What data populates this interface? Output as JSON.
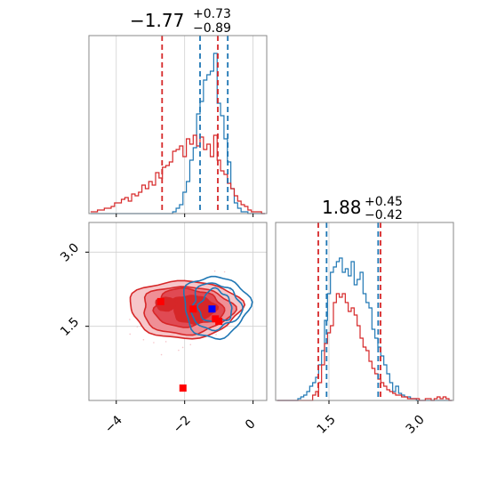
{
  "chart_data": [
    {
      "type": "histogram",
      "panel": "top-left marginal",
      "title": {
        "median": "−1.77",
        "plus": "+0.73",
        "minus": "−0.89"
      },
      "xlim": [
        -4.8,
        0.4
      ],
      "ylim": [
        0,
        1.0
      ],
      "grid": true,
      "bins_x": [
        -4.7,
        -4.6,
        -4.5,
        -4.4,
        -4.3,
        -4.2,
        -4.1,
        -4.0,
        -3.9,
        -3.8,
        -3.7,
        -3.6,
        -3.5,
        -3.4,
        -3.3,
        -3.2,
        -3.1,
        -3.0,
        -2.9,
        -2.8,
        -2.7,
        -2.6,
        -2.5,
        -2.4,
        -2.3,
        -2.2,
        -2.1,
        -2.0,
        -1.9,
        -1.8,
        -1.7,
        -1.6,
        -1.5,
        -1.4,
        -1.3,
        -1.2,
        -1.1,
        -1.0,
        -0.9,
        -0.8,
        -0.7,
        -0.6,
        -0.5,
        -0.4,
        -0.3,
        -0.2,
        -0.1,
        0.0,
        0.1,
        0.2,
        0.3
      ],
      "series": [
        {
          "color": "#1f77b4",
          "quantile_lines": [
            -1.55,
            -0.74
          ],
          "values": [
            0,
            0,
            0,
            0,
            0,
            0,
            0,
            0,
            0,
            0,
            0,
            0,
            0,
            0,
            0,
            0,
            0,
            0,
            0,
            0,
            0,
            0,
            0,
            0,
            0.01,
            0.03,
            0.05,
            0.12,
            0.18,
            0.3,
            0.37,
            0.56,
            0.63,
            0.75,
            0.78,
            0.8,
            0.9,
            0.62,
            0.55,
            0.42,
            0.29,
            0.14,
            0.06,
            0.03,
            0.01,
            0.01,
            0,
            0,
            0,
            0,
            0
          ]
        },
        {
          "color": "#d62728",
          "quantile_lines": [
            -2.66,
            -1.03
          ],
          "values": [
            0.01,
            0.01,
            0.02,
            0.02,
            0.03,
            0.03,
            0.04,
            0.06,
            0.06,
            0.08,
            0.09,
            0.07,
            0.11,
            0.1,
            0.12,
            0.16,
            0.14,
            0.18,
            0.16,
            0.23,
            0.2,
            0.26,
            0.27,
            0.29,
            0.35,
            0.36,
            0.38,
            0.32,
            0.42,
            0.39,
            0.44,
            0.38,
            0.43,
            0.36,
            0.39,
            0.32,
            0.44,
            0.3,
            0.24,
            0.22,
            0.17,
            0.14,
            0.1,
            0.07,
            0.05,
            0.04,
            0.02,
            0.01,
            0.01,
            0.01,
            0
          ]
        }
      ],
      "xticks": [
        -4,
        -2,
        0
      ]
    },
    {
      "type": "contour",
      "panel": "bottom-left 2D",
      "xlim": [
        -4.8,
        0.4
      ],
      "ylim": [
        0.0,
        3.6
      ],
      "grid": true,
      "xticks": [
        -4,
        -2,
        0
      ],
      "xtick_labels": [
        "−4",
        "−2",
        "0"
      ],
      "yticks": [
        1.5,
        3.0
      ],
      "ytick_labels": [
        "1.5",
        "3.0"
      ],
      "red_contours": {
        "color": "#d62728",
        "center": [
          -2.0,
          1.85
        ]
      },
      "blue_contours": {
        "color": "#1f77b4",
        "center": [
          -1.1,
          1.9
        ]
      },
      "red_markers": [
        [
          -2.7,
          2.0
        ],
        [
          -1.75,
          1.85
        ],
        [
          -1.1,
          1.65
        ],
        [
          -1.0,
          1.6
        ],
        [
          -2.05,
          0.25
        ]
      ],
      "blue_markers": [
        [
          -1.2,
          1.85
        ]
      ]
    },
    {
      "type": "histogram",
      "panel": "bottom-right marginal",
      "title": {
        "median": "1.88",
        "plus": "+0.45",
        "minus": "−0.42"
      },
      "xlim": [
        0.6,
        3.6
      ],
      "ylim": [
        0,
        1.0
      ],
      "grid": true,
      "xticks": [
        1.5,
        3.0
      ],
      "xtick_labels": [
        "1.5",
        "3.0"
      ],
      "bins_x": [
        0.65,
        0.7,
        0.75,
        0.8,
        0.85,
        0.9,
        0.95,
        1.0,
        1.05,
        1.1,
        1.15,
        1.2,
        1.25,
        1.3,
        1.35,
        1.4,
        1.45,
        1.5,
        1.55,
        1.6,
        1.65,
        1.7,
        1.75,
        1.8,
        1.85,
        1.9,
        1.95,
        2.0,
        2.05,
        2.1,
        2.15,
        2.2,
        2.25,
        2.3,
        2.35,
        2.4,
        2.45,
        2.5,
        2.55,
        2.6,
        2.65,
        2.7,
        2.75,
        2.8,
        2.85,
        2.9,
        2.95,
        3.0,
        3.05,
        3.1,
        3.15,
        3.2,
        3.25,
        3.3,
        3.35,
        3.4,
        3.45,
        3.5,
        3.55
      ],
      "series": [
        {
          "color": "#1f77b4",
          "quantile_lines": [
            1.46,
            2.33
          ],
          "values": [
            0,
            0,
            0,
            0,
            0,
            0,
            0,
            0.01,
            0.02,
            0.03,
            0.05,
            0.08,
            0.1,
            0.13,
            0.2,
            0.28,
            0.45,
            0.6,
            0.72,
            0.75,
            0.78,
            0.8,
            0.72,
            0.74,
            0.7,
            0.78,
            0.65,
            0.68,
            0.72,
            0.6,
            0.55,
            0.52,
            0.4,
            0.35,
            0.3,
            0.25,
            0.2,
            0.15,
            0.1,
            0.05,
            0.08,
            0.04,
            0.03,
            0.02,
            0.02,
            0.01,
            0.01,
            0,
            0,
            0,
            0,
            0,
            0,
            0,
            0,
            0,
            0,
            0,
            0
          ]
        },
        {
          "color": "#d62728",
          "quantile_lines": [
            1.32,
            2.37
          ],
          "values": [
            0,
            0,
            0,
            0,
            0,
            0,
            0,
            0,
            0,
            0,
            0,
            0,
            0.03,
            0.05,
            0.1,
            0.2,
            0.32,
            0.38,
            0.42,
            0.55,
            0.6,
            0.58,
            0.6,
            0.55,
            0.5,
            0.52,
            0.48,
            0.42,
            0.35,
            0.3,
            0.28,
            0.22,
            0.18,
            0.15,
            0.12,
            0.1,
            0.08,
            0.06,
            0.05,
            0.04,
            0.03,
            0.03,
            0.02,
            0.02,
            0.01,
            0.01,
            0.01,
            0.01,
            0,
            0,
            0.01,
            0.01,
            0,
            0.01,
            0.02,
            0.01,
            0.02,
            0.01,
            0
          ]
        }
      ]
    }
  ]
}
